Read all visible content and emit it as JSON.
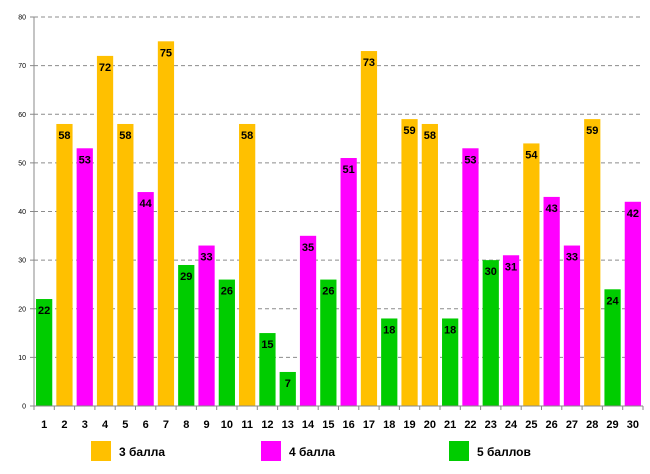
{
  "chart_data": {
    "type": "bar",
    "title": "",
    "xlabel": "",
    "ylabel": "",
    "ylim": [
      0,
      80
    ],
    "yticks": [
      0,
      10,
      20,
      30,
      40,
      50,
      60,
      70,
      80
    ],
    "grid": true,
    "legend_position": "bottom",
    "categories": [
      "1",
      "2",
      "3",
      "4",
      "5",
      "6",
      "7",
      "8",
      "9",
      "10",
      "11",
      "12",
      "13",
      "14",
      "15",
      "16",
      "17",
      "18",
      "19",
      "20",
      "21",
      "22",
      "23",
      "24",
      "25",
      "26",
      "27",
      "28",
      "29",
      "30"
    ],
    "series": [
      {
        "name": "3 балла",
        "color": "#FFC000"
      },
      {
        "name": "4 балла",
        "color": "#FF00FF"
      },
      {
        "name": "5 баллов",
        "color": "#00CC00"
      }
    ],
    "bars": [
      {
        "category": "1",
        "series": "5 баллов",
        "value": 22
      },
      {
        "category": "2",
        "series": "3 балла",
        "value": 58
      },
      {
        "category": "3",
        "series": "4 балла",
        "value": 53
      },
      {
        "category": "4",
        "series": "3 балла",
        "value": 72
      },
      {
        "category": "5",
        "series": "3 балла",
        "value": 58
      },
      {
        "category": "6",
        "series": "4 балла",
        "value": 44
      },
      {
        "category": "7",
        "series": "3 балла",
        "value": 75
      },
      {
        "category": "8",
        "series": "5 баллов",
        "value": 29
      },
      {
        "category": "9",
        "series": "4 балла",
        "value": 33
      },
      {
        "category": "10",
        "series": "5 баллов",
        "value": 26
      },
      {
        "category": "11",
        "series": "3 балла",
        "value": 58
      },
      {
        "category": "12",
        "series": "5 баллов",
        "value": 15
      },
      {
        "category": "13",
        "series": "5 баллов",
        "value": 7
      },
      {
        "category": "14",
        "series": "4 балла",
        "value": 35
      },
      {
        "category": "15",
        "series": "5 баллов",
        "value": 26
      },
      {
        "category": "16",
        "series": "4 балла",
        "value": 51
      },
      {
        "category": "17",
        "series": "3 балла",
        "value": 73
      },
      {
        "category": "18",
        "series": "5 баллов",
        "value": 18
      },
      {
        "category": "19",
        "series": "3 балла",
        "value": 59
      },
      {
        "category": "20",
        "series": "3 балла",
        "value": 58
      },
      {
        "category": "21",
        "series": "5 баллов",
        "value": 18
      },
      {
        "category": "22",
        "series": "4 балла",
        "value": 53
      },
      {
        "category": "23",
        "series": "5 баллов",
        "value": 30
      },
      {
        "category": "24",
        "series": "4 балла",
        "value": 31
      },
      {
        "category": "25",
        "series": "3 балла",
        "value": 54
      },
      {
        "category": "26",
        "series": "4 балла",
        "value": 43
      },
      {
        "category": "27",
        "series": "4 балла",
        "value": 33
      },
      {
        "category": "28",
        "series": "3 балла",
        "value": 59
      },
      {
        "category": "29",
        "series": "5 баллов",
        "value": 24
      },
      {
        "category": "30",
        "series": "4 балла",
        "value": 42
      }
    ]
  }
}
